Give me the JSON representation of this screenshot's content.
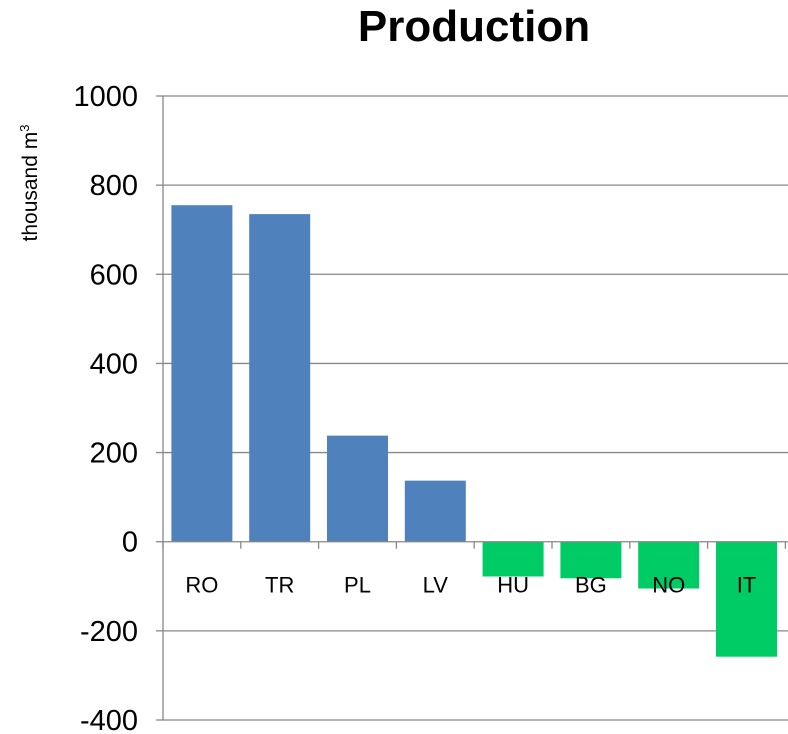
{
  "chart_data": {
    "type": "bar",
    "title": "Production",
    "ylabel": "thousand m",
    "ylabel_superscript": "3",
    "xlabel": "",
    "categories": [
      "RO",
      "TR",
      "PL",
      "LV",
      "HU",
      "BG",
      "NO",
      "IT"
    ],
    "values": [
      755,
      735,
      238,
      137,
      -78,
      -82,
      -105,
      -258
    ],
    "ylim": [
      -400,
      1000
    ],
    "yticks": [
      "1000",
      "800",
      "600",
      "400",
      "200",
      "0",
      "-200",
      "-400"
    ],
    "ytick_values": [
      1000,
      800,
      600,
      400,
      200,
      0,
      -200,
      -400
    ],
    "grid": "horizontal",
    "colors": {
      "positive": "#4f81bd",
      "negative": "#00cc66",
      "grid": "#878787"
    }
  }
}
